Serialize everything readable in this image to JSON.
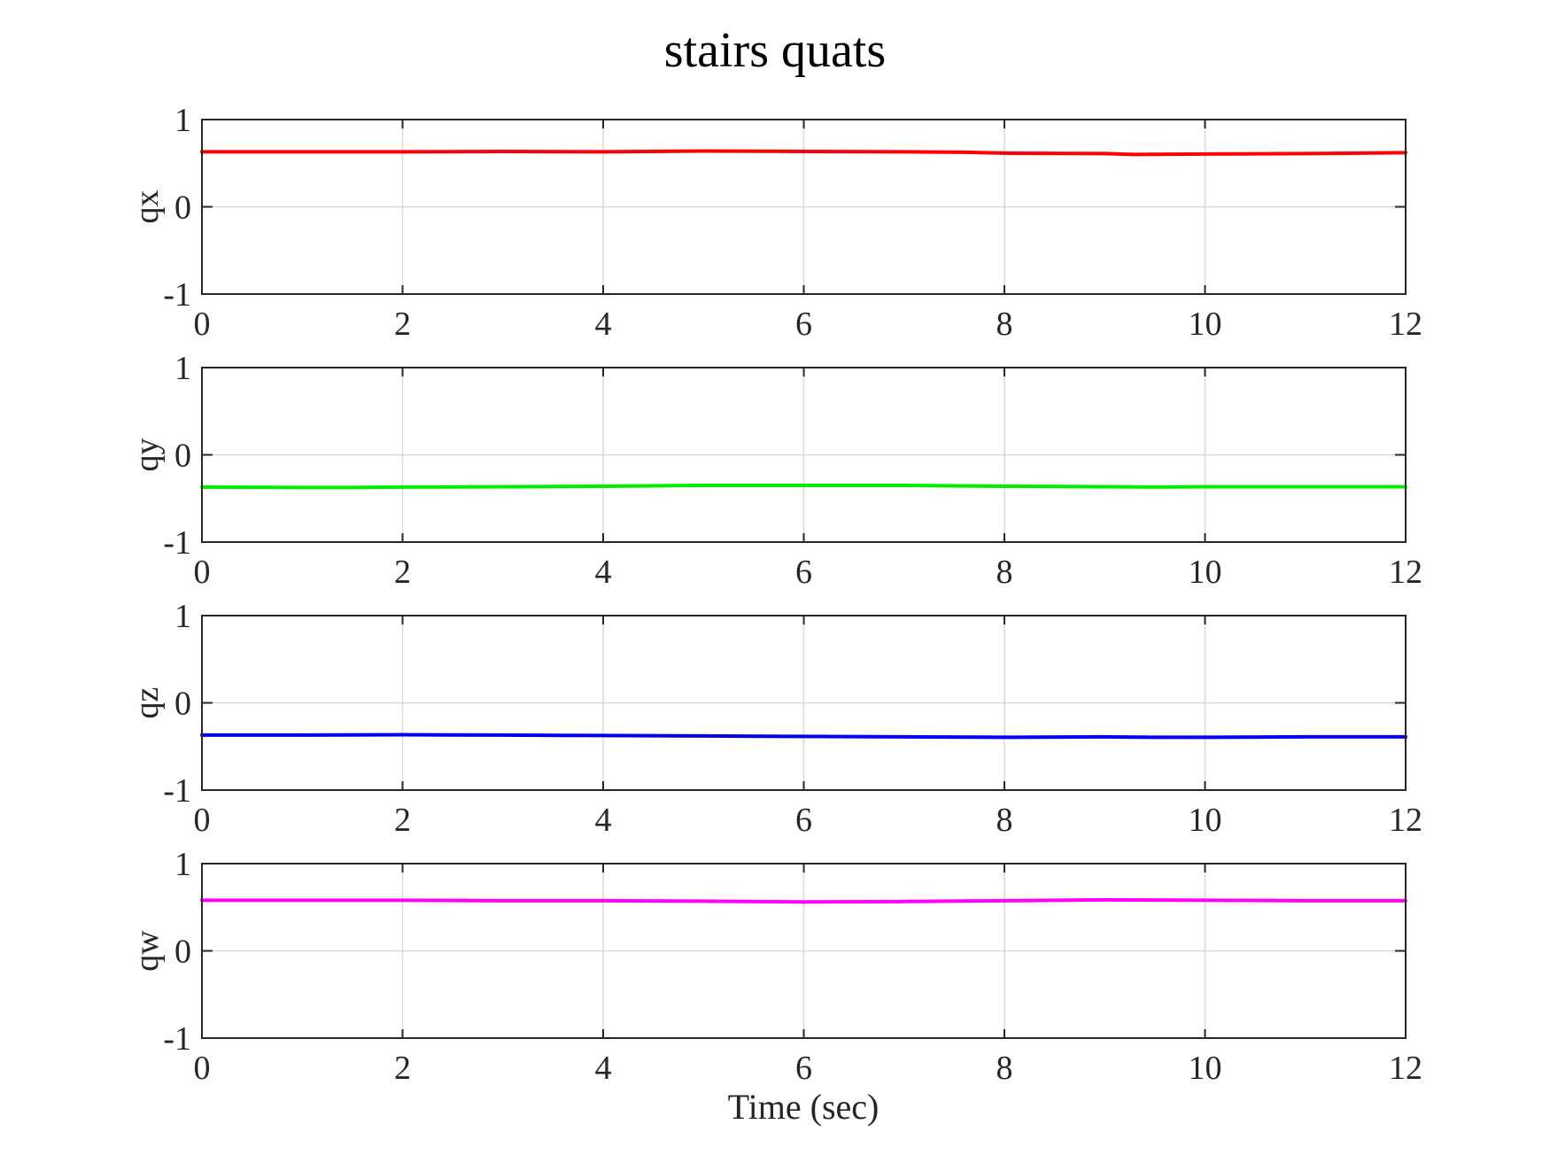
{
  "chart_data": {
    "type": "line",
    "title": "stairs quats",
    "xlabel": "Time (sec)",
    "xlim": [
      0,
      12
    ],
    "xticks": [
      0,
      2,
      4,
      6,
      8,
      10,
      12
    ],
    "grid": true,
    "legend": "none",
    "subplots": [
      {
        "ylabel": "qx",
        "ylim": [
          -1,
          1
        ],
        "yticks": [
          -1,
          0,
          1
        ],
        "color": "#ff0000",
        "x": [
          0,
          1,
          2,
          3,
          4,
          5,
          6,
          7,
          7.6,
          8,
          9,
          9.3,
          10,
          11,
          12
        ],
        "y": [
          0.63,
          0.63,
          0.63,
          0.635,
          0.63,
          0.64,
          0.635,
          0.63,
          0.625,
          0.615,
          0.61,
          0.6,
          0.605,
          0.61,
          0.62
        ]
      },
      {
        "ylabel": "qy",
        "ylim": [
          -1,
          1
        ],
        "yticks": [
          -1,
          0,
          1
        ],
        "color": "#00ee00",
        "x": [
          0,
          1,
          1.5,
          2,
          3,
          4,
          5,
          6,
          7,
          8,
          9,
          9.5,
          10,
          11,
          12
        ],
        "y": [
          -0.37,
          -0.375,
          -0.375,
          -0.37,
          -0.365,
          -0.36,
          -0.35,
          -0.35,
          -0.35,
          -0.36,
          -0.365,
          -0.37,
          -0.365,
          -0.365,
          -0.365
        ]
      },
      {
        "ylabel": "qz",
        "ylim": [
          -1,
          1
        ],
        "yticks": [
          -1,
          0,
          1
        ],
        "color": "#0000ee",
        "x": [
          0,
          1,
          2,
          3,
          4,
          5,
          6,
          7,
          8,
          9,
          9.5,
          10,
          11,
          12
        ],
        "y": [
          -0.37,
          -0.37,
          -0.365,
          -0.37,
          -0.375,
          -0.38,
          -0.385,
          -0.39,
          -0.395,
          -0.39,
          -0.395,
          -0.395,
          -0.39,
          -0.39
        ]
      },
      {
        "ylabel": "qw",
        "ylim": [
          -1,
          1
        ],
        "yticks": [
          -1,
          0,
          1
        ],
        "color": "#ff00ff",
        "x": [
          0,
          1,
          2,
          3,
          4,
          5,
          6,
          7,
          8,
          9,
          10,
          11,
          12
        ],
        "y": [
          0.58,
          0.58,
          0.58,
          0.575,
          0.575,
          0.57,
          0.56,
          0.565,
          0.575,
          0.585,
          0.58,
          0.575,
          0.575
        ]
      }
    ]
  }
}
